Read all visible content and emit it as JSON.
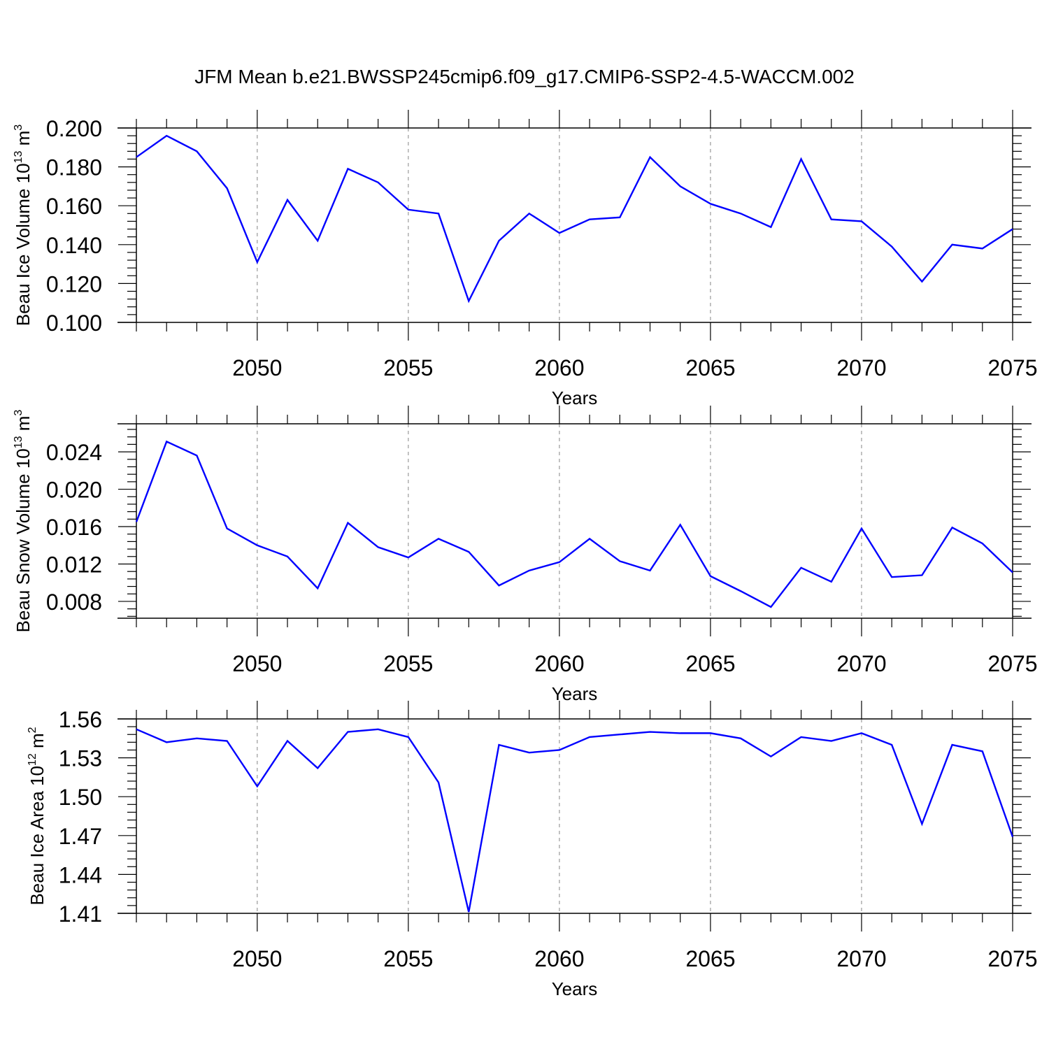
{
  "title": "JFM Mean b.e21.BWSSP245cmip6.f09_g17.CMIP6-SSP2-4.5-WACCM.002",
  "colors": {
    "line": "#0000ff",
    "axis": "#000000",
    "grid": "#999999"
  },
  "chart_data": [
    {
      "type": "line",
      "ylabel": {
        "base": "Beau Ice Volume 10",
        "exponent": "13",
        "unit": " m",
        "unit_exponent": "3"
      },
      "xlabel": "Years",
      "xlim": [
        2046,
        2075
      ],
      "ylim": [
        0.1,
        0.2
      ],
      "x_ticks": [
        "2050",
        "2055",
        "2060",
        "2065",
        "2070",
        "2075"
      ],
      "y_ticks": [
        "0.100",
        "0.120",
        "0.140",
        "0.160",
        "0.180",
        "0.200"
      ],
      "grid": "dashed vertical lines at major x ticks",
      "x": [
        2046,
        2047,
        2048,
        2049,
        2050,
        2051,
        2052,
        2053,
        2054,
        2055,
        2056,
        2057,
        2058,
        2059,
        2060,
        2061,
        2062,
        2063,
        2064,
        2065,
        2066,
        2067,
        2068,
        2069,
        2070,
        2071,
        2072,
        2073,
        2074,
        2075
      ],
      "values": [
        0.185,
        0.196,
        0.188,
        0.169,
        0.131,
        0.163,
        0.142,
        0.179,
        0.172,
        0.158,
        0.156,
        0.111,
        0.142,
        0.156,
        0.146,
        0.153,
        0.154,
        0.185,
        0.17,
        0.161,
        0.156,
        0.149,
        0.184,
        0.153,
        0.152,
        0.139,
        0.121,
        0.14,
        0.138,
        0.148
      ]
    },
    {
      "type": "line",
      "ylabel": {
        "base": "Beau Snow Volume 10",
        "exponent": "13",
        "unit": " m",
        "unit_exponent": "3"
      },
      "xlabel": "Years",
      "xlim": [
        2046,
        2075
      ],
      "ylim": [
        0.0062,
        0.027
      ],
      "x_ticks": [
        "2050",
        "2055",
        "2060",
        "2065",
        "2070",
        "2075"
      ],
      "y_ticks": [
        "0.008",
        "0.012",
        "0.016",
        "0.020",
        "0.024"
      ],
      "grid": "dashed vertical lines at major x ticks",
      "x": [
        2046,
        2047,
        2048,
        2049,
        2050,
        2051,
        2052,
        2053,
        2054,
        2055,
        2056,
        2057,
        2058,
        2059,
        2060,
        2061,
        2062,
        2063,
        2064,
        2065,
        2066,
        2067,
        2068,
        2069,
        2070,
        2071,
        2072,
        2073,
        2074,
        2075
      ],
      "values": [
        0.0165,
        0.0251,
        0.0236,
        0.0158,
        0.014,
        0.0128,
        0.0094,
        0.0164,
        0.0138,
        0.0127,
        0.0147,
        0.0133,
        0.0097,
        0.0113,
        0.0122,
        0.0147,
        0.0123,
        0.0113,
        0.0162,
        0.0107,
        0.0091,
        0.0074,
        0.0116,
        0.0101,
        0.0158,
        0.0106,
        0.0108,
        0.0159,
        0.0142,
        0.0111
      ]
    },
    {
      "type": "line",
      "ylabel": {
        "base": "Beau Ice Area 10",
        "exponent": "12",
        "unit": " m",
        "unit_exponent": "2"
      },
      "xlabel": "Years",
      "xlim": [
        2046,
        2075
      ],
      "ylim": [
        1.41,
        1.56
      ],
      "x_ticks": [
        "2050",
        "2055",
        "2060",
        "2065",
        "2070",
        "2075"
      ],
      "y_ticks": [
        "1.41",
        "1.44",
        "1.47",
        "1.50",
        "1.53",
        "1.56"
      ],
      "grid": "dashed vertical lines at major x ticks",
      "x": [
        2046,
        2047,
        2048,
        2049,
        2050,
        2051,
        2052,
        2053,
        2054,
        2055,
        2056,
        2057,
        2058,
        2059,
        2060,
        2061,
        2062,
        2063,
        2064,
        2065,
        2066,
        2067,
        2068,
        2069,
        2070,
        2071,
        2072,
        2073,
        2074,
        2075
      ],
      "values": [
        1.552,
        1.542,
        1.545,
        1.543,
        1.508,
        1.543,
        1.522,
        1.55,
        1.552,
        1.546,
        1.511,
        1.411,
        1.54,
        1.534,
        1.536,
        1.546,
        1.548,
        1.55,
        1.549,
        1.549,
        1.545,
        1.531,
        1.546,
        1.543,
        1.549,
        1.54,
        1.479,
        1.54,
        1.535,
        1.469
      ]
    }
  ]
}
